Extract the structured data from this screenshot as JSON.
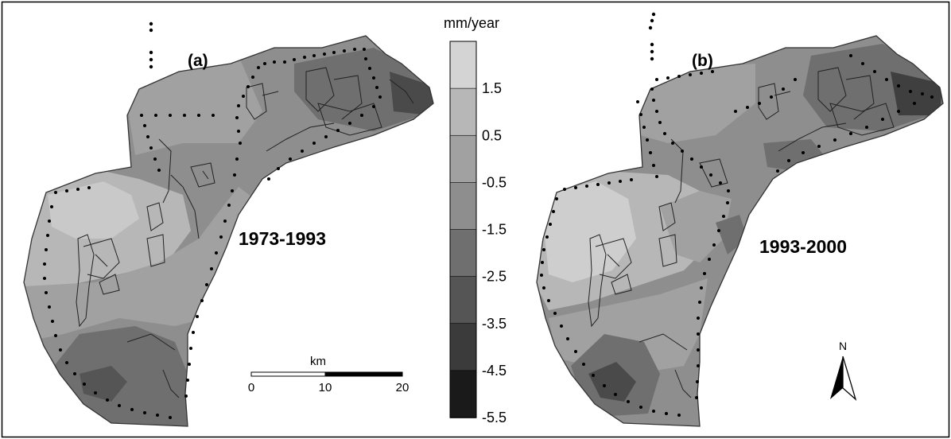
{
  "legend": {
    "unit": "mm/year",
    "ticks": [
      "1.5",
      "0.5",
      "-0.5",
      "-1.5",
      "-2.5",
      "-3.5",
      "-4.5",
      "-5.5"
    ],
    "band_colors": [
      "#d4d4d4",
      "#b7b7b7",
      "#a1a1a1",
      "#8e8e8e",
      "#6f6f6f",
      "#555555",
      "#3b3b3b",
      "#1a1a1a"
    ]
  },
  "panels": [
    {
      "letter": "(a)",
      "period": "1973-1993"
    },
    {
      "letter": "(b)",
      "period": "1993-2000"
    }
  ],
  "scalebar": {
    "unit": "km",
    "ticks": [
      "0",
      "10",
      "20"
    ]
  },
  "north_arrow": {
    "label": "N",
    "icon": "north-arrow-icon"
  }
}
